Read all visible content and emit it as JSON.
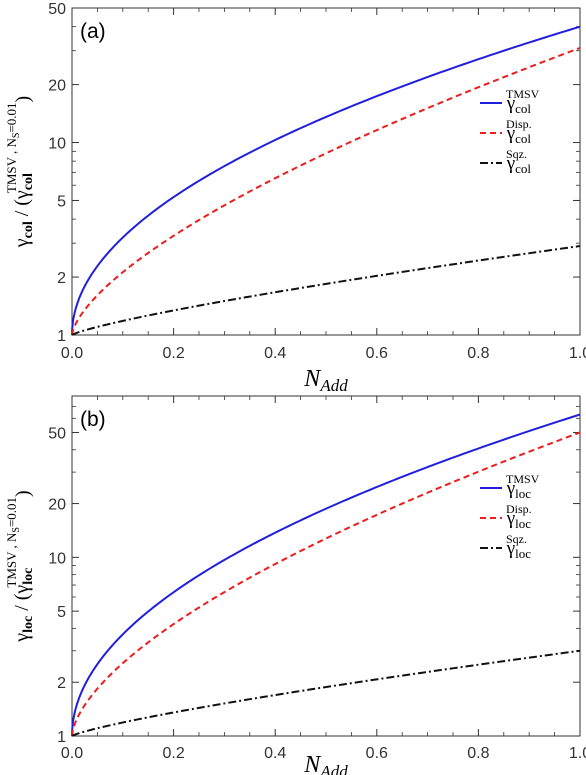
{
  "chart_data": [
    {
      "type": "line",
      "panel_label": "(a)",
      "xlabel_main": "N",
      "xlabel_sub": "Add",
      "ylabel_parts": {
        "gamma": "γ",
        "sub": "col",
        "mid": " / (",
        "gamma2": "γ",
        "sub2": "col",
        "sup2": "TMSV , N",
        "sup2_sub": "S",
        "sup2_end": "=0.01",
        "close": ")"
      },
      "x_ticks": [
        "0.0",
        "0.2",
        "0.4",
        "0.6",
        "0.8",
        "1.0"
      ],
      "y_ticks": [
        "1",
        "2",
        "5",
        "10",
        "20",
        "50"
      ],
      "y_tick_values": [
        1,
        2,
        5,
        10,
        20,
        50
      ],
      "xlim": [
        0,
        1
      ],
      "ylim": [
        1,
        50
      ],
      "yscale": "log",
      "legend_position": "right",
      "series": [
        {
          "label_base": "γ",
          "label_sub": "col",
          "label_sup": "TMSV",
          "color": "#1f1fdd",
          "dash": "solid",
          "y0": 1,
          "y1": 40,
          "pexp": 0.5
        },
        {
          "label_base": "γ",
          "label_sub": "col",
          "label_sup": "Disp.",
          "color": "#ee1c1c",
          "dash": "dashed",
          "y0": 1,
          "y1": 31,
          "pexp": 0.66
        },
        {
          "label_base": "γ",
          "label_sub": "col",
          "label_sup": "Sqz.",
          "color": "#111111",
          "dash": "dashdot",
          "y0": 1,
          "y1": 2.9,
          "pexp": 0.8
        }
      ]
    },
    {
      "type": "line",
      "panel_label": "(b)",
      "xlabel_main": "N",
      "xlabel_sub": "Add",
      "ylabel_parts": {
        "gamma": "γ",
        "sub": "loc",
        "mid": " / (",
        "gamma2": "γ",
        "sub2": "loc",
        "sup2": "TMSV , N",
        "sup2_sub": "S",
        "sup2_end": "=0.01",
        "close": ")"
      },
      "x_ticks": [
        "0.0",
        "0.2",
        "0.4",
        "0.6",
        "0.8",
        "1.0"
      ],
      "y_ticks": [
        "1",
        "2",
        "5",
        "10",
        "20",
        "50"
      ],
      "y_tick_values": [
        1,
        2,
        5,
        10,
        20,
        50
      ],
      "xlim": [
        0,
        1
      ],
      "ylim": [
        1,
        80
      ],
      "yscale": "log",
      "legend_position": "right",
      "series": [
        {
          "label_base": "γ",
          "label_sub": "loc",
          "label_sup": "TMSV",
          "color": "#1f1fdd",
          "dash": "solid",
          "y0": 1,
          "y1": 63,
          "pexp": 0.5
        },
        {
          "label_base": "γ",
          "label_sub": "loc",
          "label_sup": "Disp.",
          "color": "#ee1c1c",
          "dash": "dashed",
          "y0": 1,
          "y1": 50,
          "pexp": 0.62
        },
        {
          "label_base": "γ",
          "label_sub": "loc",
          "label_sup": "Sqz.",
          "color": "#111111",
          "dash": "dashdot",
          "y0": 1,
          "y1": 3.0,
          "pexp": 0.8
        }
      ]
    }
  ]
}
